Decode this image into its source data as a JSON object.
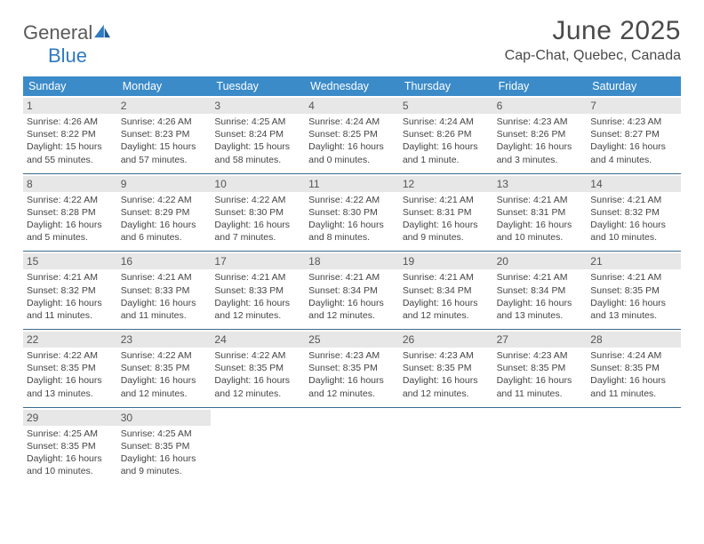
{
  "logo": {
    "general": "General",
    "blue": "Blue"
  },
  "title": "June 2025",
  "location": "Cap-Chat, Quebec, Canada",
  "colors": {
    "header_bg": "#3b8bc9",
    "header_text": "#ffffff",
    "daynum_bg": "#e7e7e7",
    "row_border": "#3b6a8e",
    "logo_blue": "#2f7ac0",
    "text": "#444444"
  },
  "weekdays": [
    "Sunday",
    "Monday",
    "Tuesday",
    "Wednesday",
    "Thursday",
    "Friday",
    "Saturday"
  ],
  "weeks": [
    [
      {
        "n": "1",
        "sunrise": "Sunrise: 4:26 AM",
        "sunset": "Sunset: 8:22 PM",
        "daylight": "Daylight: 15 hours and 55 minutes."
      },
      {
        "n": "2",
        "sunrise": "Sunrise: 4:26 AM",
        "sunset": "Sunset: 8:23 PM",
        "daylight": "Daylight: 15 hours and 57 minutes."
      },
      {
        "n": "3",
        "sunrise": "Sunrise: 4:25 AM",
        "sunset": "Sunset: 8:24 PM",
        "daylight": "Daylight: 15 hours and 58 minutes."
      },
      {
        "n": "4",
        "sunrise": "Sunrise: 4:24 AM",
        "sunset": "Sunset: 8:25 PM",
        "daylight": "Daylight: 16 hours and 0 minutes."
      },
      {
        "n": "5",
        "sunrise": "Sunrise: 4:24 AM",
        "sunset": "Sunset: 8:26 PM",
        "daylight": "Daylight: 16 hours and 1 minute."
      },
      {
        "n": "6",
        "sunrise": "Sunrise: 4:23 AM",
        "sunset": "Sunset: 8:26 PM",
        "daylight": "Daylight: 16 hours and 3 minutes."
      },
      {
        "n": "7",
        "sunrise": "Sunrise: 4:23 AM",
        "sunset": "Sunset: 8:27 PM",
        "daylight": "Daylight: 16 hours and 4 minutes."
      }
    ],
    [
      {
        "n": "8",
        "sunrise": "Sunrise: 4:22 AM",
        "sunset": "Sunset: 8:28 PM",
        "daylight": "Daylight: 16 hours and 5 minutes."
      },
      {
        "n": "9",
        "sunrise": "Sunrise: 4:22 AM",
        "sunset": "Sunset: 8:29 PM",
        "daylight": "Daylight: 16 hours and 6 minutes."
      },
      {
        "n": "10",
        "sunrise": "Sunrise: 4:22 AM",
        "sunset": "Sunset: 8:30 PM",
        "daylight": "Daylight: 16 hours and 7 minutes."
      },
      {
        "n": "11",
        "sunrise": "Sunrise: 4:22 AM",
        "sunset": "Sunset: 8:30 PM",
        "daylight": "Daylight: 16 hours and 8 minutes."
      },
      {
        "n": "12",
        "sunrise": "Sunrise: 4:21 AM",
        "sunset": "Sunset: 8:31 PM",
        "daylight": "Daylight: 16 hours and 9 minutes."
      },
      {
        "n": "13",
        "sunrise": "Sunrise: 4:21 AM",
        "sunset": "Sunset: 8:31 PM",
        "daylight": "Daylight: 16 hours and 10 minutes."
      },
      {
        "n": "14",
        "sunrise": "Sunrise: 4:21 AM",
        "sunset": "Sunset: 8:32 PM",
        "daylight": "Daylight: 16 hours and 10 minutes."
      }
    ],
    [
      {
        "n": "15",
        "sunrise": "Sunrise: 4:21 AM",
        "sunset": "Sunset: 8:32 PM",
        "daylight": "Daylight: 16 hours and 11 minutes."
      },
      {
        "n": "16",
        "sunrise": "Sunrise: 4:21 AM",
        "sunset": "Sunset: 8:33 PM",
        "daylight": "Daylight: 16 hours and 11 minutes."
      },
      {
        "n": "17",
        "sunrise": "Sunrise: 4:21 AM",
        "sunset": "Sunset: 8:33 PM",
        "daylight": "Daylight: 16 hours and 12 minutes."
      },
      {
        "n": "18",
        "sunrise": "Sunrise: 4:21 AM",
        "sunset": "Sunset: 8:34 PM",
        "daylight": "Daylight: 16 hours and 12 minutes."
      },
      {
        "n": "19",
        "sunrise": "Sunrise: 4:21 AM",
        "sunset": "Sunset: 8:34 PM",
        "daylight": "Daylight: 16 hours and 12 minutes."
      },
      {
        "n": "20",
        "sunrise": "Sunrise: 4:21 AM",
        "sunset": "Sunset: 8:34 PM",
        "daylight": "Daylight: 16 hours and 13 minutes."
      },
      {
        "n": "21",
        "sunrise": "Sunrise: 4:21 AM",
        "sunset": "Sunset: 8:35 PM",
        "daylight": "Daylight: 16 hours and 13 minutes."
      }
    ],
    [
      {
        "n": "22",
        "sunrise": "Sunrise: 4:22 AM",
        "sunset": "Sunset: 8:35 PM",
        "daylight": "Daylight: 16 hours and 13 minutes."
      },
      {
        "n": "23",
        "sunrise": "Sunrise: 4:22 AM",
        "sunset": "Sunset: 8:35 PM",
        "daylight": "Daylight: 16 hours and 12 minutes."
      },
      {
        "n": "24",
        "sunrise": "Sunrise: 4:22 AM",
        "sunset": "Sunset: 8:35 PM",
        "daylight": "Daylight: 16 hours and 12 minutes."
      },
      {
        "n": "25",
        "sunrise": "Sunrise: 4:23 AM",
        "sunset": "Sunset: 8:35 PM",
        "daylight": "Daylight: 16 hours and 12 minutes."
      },
      {
        "n": "26",
        "sunrise": "Sunrise: 4:23 AM",
        "sunset": "Sunset: 8:35 PM",
        "daylight": "Daylight: 16 hours and 12 minutes."
      },
      {
        "n": "27",
        "sunrise": "Sunrise: 4:23 AM",
        "sunset": "Sunset: 8:35 PM",
        "daylight": "Daylight: 16 hours and 11 minutes."
      },
      {
        "n": "28",
        "sunrise": "Sunrise: 4:24 AM",
        "sunset": "Sunset: 8:35 PM",
        "daylight": "Daylight: 16 hours and 11 minutes."
      }
    ],
    [
      {
        "n": "29",
        "sunrise": "Sunrise: 4:25 AM",
        "sunset": "Sunset: 8:35 PM",
        "daylight": "Daylight: 16 hours and 10 minutes."
      },
      {
        "n": "30",
        "sunrise": "Sunrise: 4:25 AM",
        "sunset": "Sunset: 8:35 PM",
        "daylight": "Daylight: 16 hours and 9 minutes."
      },
      null,
      null,
      null,
      null,
      null
    ]
  ]
}
